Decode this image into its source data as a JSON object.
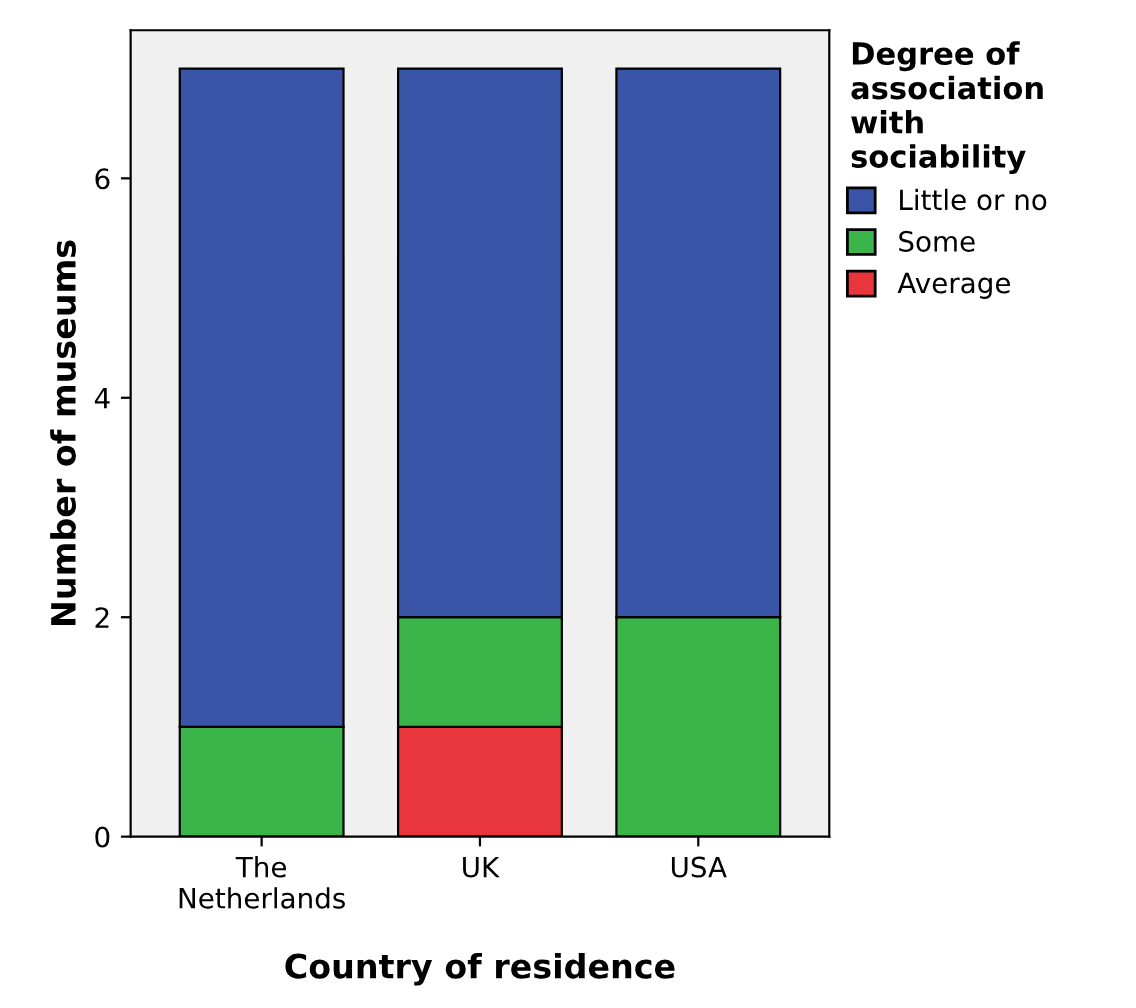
{
  "chart_data": {
    "type": "bar",
    "stacked": true,
    "xlabel": "Country of residence",
    "ylabel": "Number of museums",
    "legend_title": "Degree of\nassociation\nwith\nsociability",
    "legend": "right",
    "categories": [
      "The\nNetherlands",
      "UK",
      "USA"
    ],
    "series": [
      {
        "name": "Average",
        "color": "#e8363c",
        "values": [
          0,
          1,
          0
        ]
      },
      {
        "name": "Some",
        "color": "#3bb54a",
        "values": [
          1,
          1,
          2
        ]
      },
      {
        "name": "Little or no",
        "color": "#3a55a8",
        "values": [
          6,
          5,
          5
        ]
      }
    ],
    "ylim": [
      0,
      7.35
    ],
    "yticks": [
      0,
      2,
      4,
      6
    ],
    "grid": false
  }
}
